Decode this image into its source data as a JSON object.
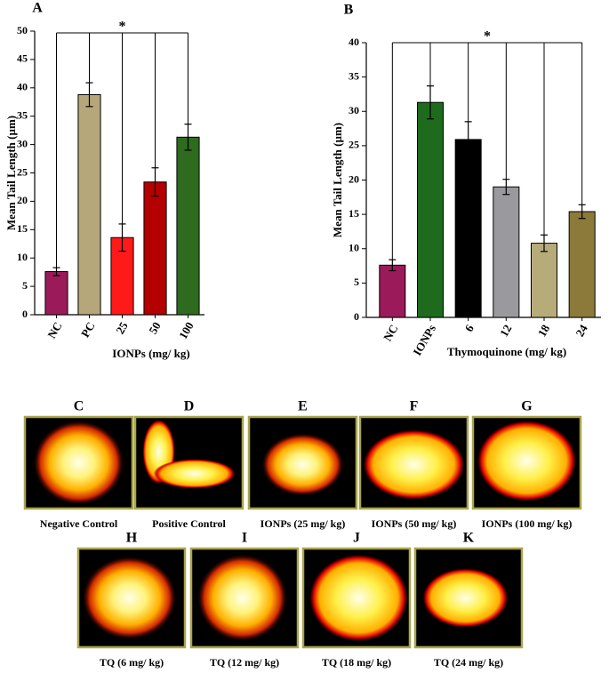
{
  "chart_data": [
    {
      "type": "bar",
      "title": "A",
      "annotation": "*",
      "ylabel": "Mean Tail Length (µm)",
      "xlabel": "IONPs (mg/ kg)",
      "categories": [
        "NC",
        "PC",
        "25",
        "50",
        "100"
      ],
      "values": [
        7.6,
        38.8,
        13.6,
        23.4,
        31.3
      ],
      "errors": [
        0.7,
        2.1,
        2.4,
        2.5,
        2.3
      ],
      "colors": [
        "#9b1b5a",
        "#b5a77a",
        "#ff1a1a",
        "#b30000",
        "#2e6b1e"
      ],
      "ylim": [
        0,
        50
      ],
      "yticks": [
        0,
        5,
        10,
        15,
        20,
        25,
        30,
        35,
        40,
        45,
        50
      ]
    },
    {
      "type": "bar",
      "title": "B",
      "annotation": "*",
      "ylabel": "Mean Tail Length (µm)",
      "xlabel": "Thymoquinone (mg/ kg)",
      "categories": [
        "NC",
        "IONPs",
        "6",
        "12",
        "18",
        "24"
      ],
      "values": [
        7.6,
        31.3,
        25.9,
        19.0,
        10.8,
        15.4
      ],
      "errors": [
        0.8,
        2.4,
        2.6,
        1.1,
        1.2,
        1.0
      ],
      "colors": [
        "#9b1b5a",
        "#1e6b1e",
        "#000000",
        "#9a9a9e",
        "#b5ac7a",
        "#8b7a3a"
      ],
      "ylim": [
        0,
        40
      ],
      "yticks": [
        0,
        5,
        10,
        15,
        20,
        25,
        30,
        35,
        40
      ]
    }
  ],
  "image_panels": [
    {
      "letter": "C",
      "caption": "Negative Control"
    },
    {
      "letter": "D",
      "caption": "Positive Control"
    },
    {
      "letter": "E",
      "caption": "IONPs (25 mg/ kg)"
    },
    {
      "letter": "F",
      "caption": "IONPs (50 mg/ kg)"
    },
    {
      "letter": "G",
      "caption": "IONPs (100 mg/ kg)"
    },
    {
      "letter": "H",
      "caption": "TQ (6 mg/ kg)"
    },
    {
      "letter": "I",
      "caption": "TQ (12 mg/ kg)"
    },
    {
      "letter": "J",
      "caption": "TQ (18 mg/ kg)"
    },
    {
      "letter": "K",
      "caption": "TQ (24 mg/ kg)"
    }
  ]
}
